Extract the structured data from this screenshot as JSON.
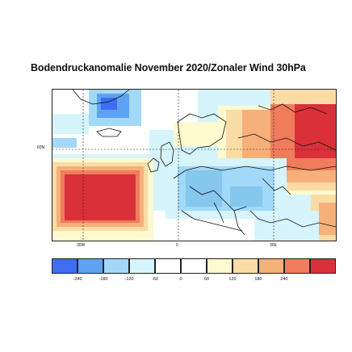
{
  "title": "Bodendruckanomalie November 2020/Zonaler Wind 30hPa",
  "map": {
    "projection": "lat-lon",
    "grid_style": "dashed",
    "lat_labels": [
      {
        "text": "60N"
      }
    ],
    "lon_labels": [
      {
        "text": "30W"
      },
      {
        "text": "0"
      },
      {
        "text": "30E"
      }
    ],
    "anomaly_centers": [
      {
        "name": "positive anomaly North Atlantic",
        "sign": "positive",
        "color": "#d9303a"
      },
      {
        "name": "positive anomaly Northeast Europe / Russia",
        "sign": "positive",
        "color": "#d9303a"
      },
      {
        "name": "negative anomaly Central Europe",
        "sign": "negative",
        "color": "#86c7ee"
      },
      {
        "name": "negative anomaly Greenland",
        "sign": "negative",
        "color": "#4f8ff0"
      }
    ]
  },
  "colorbar": {
    "colors": [
      "#3e6df2",
      "#5ea3f3",
      "#a2d9f8",
      "#d6f4fb",
      "#ffffff",
      "#ffffff",
      "#fffad0",
      "#fcdca5",
      "#f6b07a",
      "#f07c5c",
      "#d9303a"
    ],
    "labels": [
      "-240",
      "-180",
      "-120",
      "-60",
      "0",
      "60",
      "120",
      "180",
      "240"
    ]
  }
}
